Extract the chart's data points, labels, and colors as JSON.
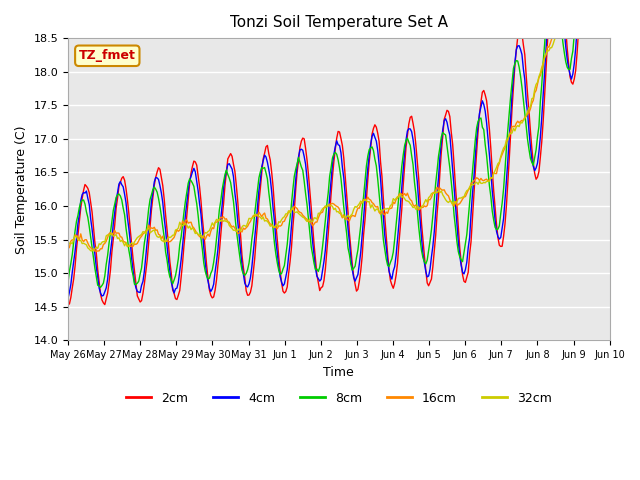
{
  "title": "Tonzi Soil Temperature Set A",
  "xlabel": "Time",
  "ylabel": "Soil Temperature (C)",
  "ylim": [
    14.0,
    18.5
  ],
  "annotation": "TZ_fmet",
  "annotation_color": "#cc0000",
  "annotation_bg": "#ffffcc",
  "bg_color": "#e8e8e8",
  "series_colors": {
    "2cm": "#ff0000",
    "4cm": "#0000ff",
    "8cm": "#00cc00",
    "16cm": "#ff8800",
    "32cm": "#cccc00"
  },
  "x_tick_labels": [
    "May 26",
    "May 27",
    "May 28",
    "May 29",
    "May 30",
    "May 31",
    "Jun 1",
    "Jun 2",
    "Jun 3",
    "Jun 4",
    "Jun 5",
    "Jun 6",
    "Jun 7",
    "Jun 8",
    "Jun 9",
    "Jun 10"
  ],
  "n_points": 384,
  "days": 15
}
